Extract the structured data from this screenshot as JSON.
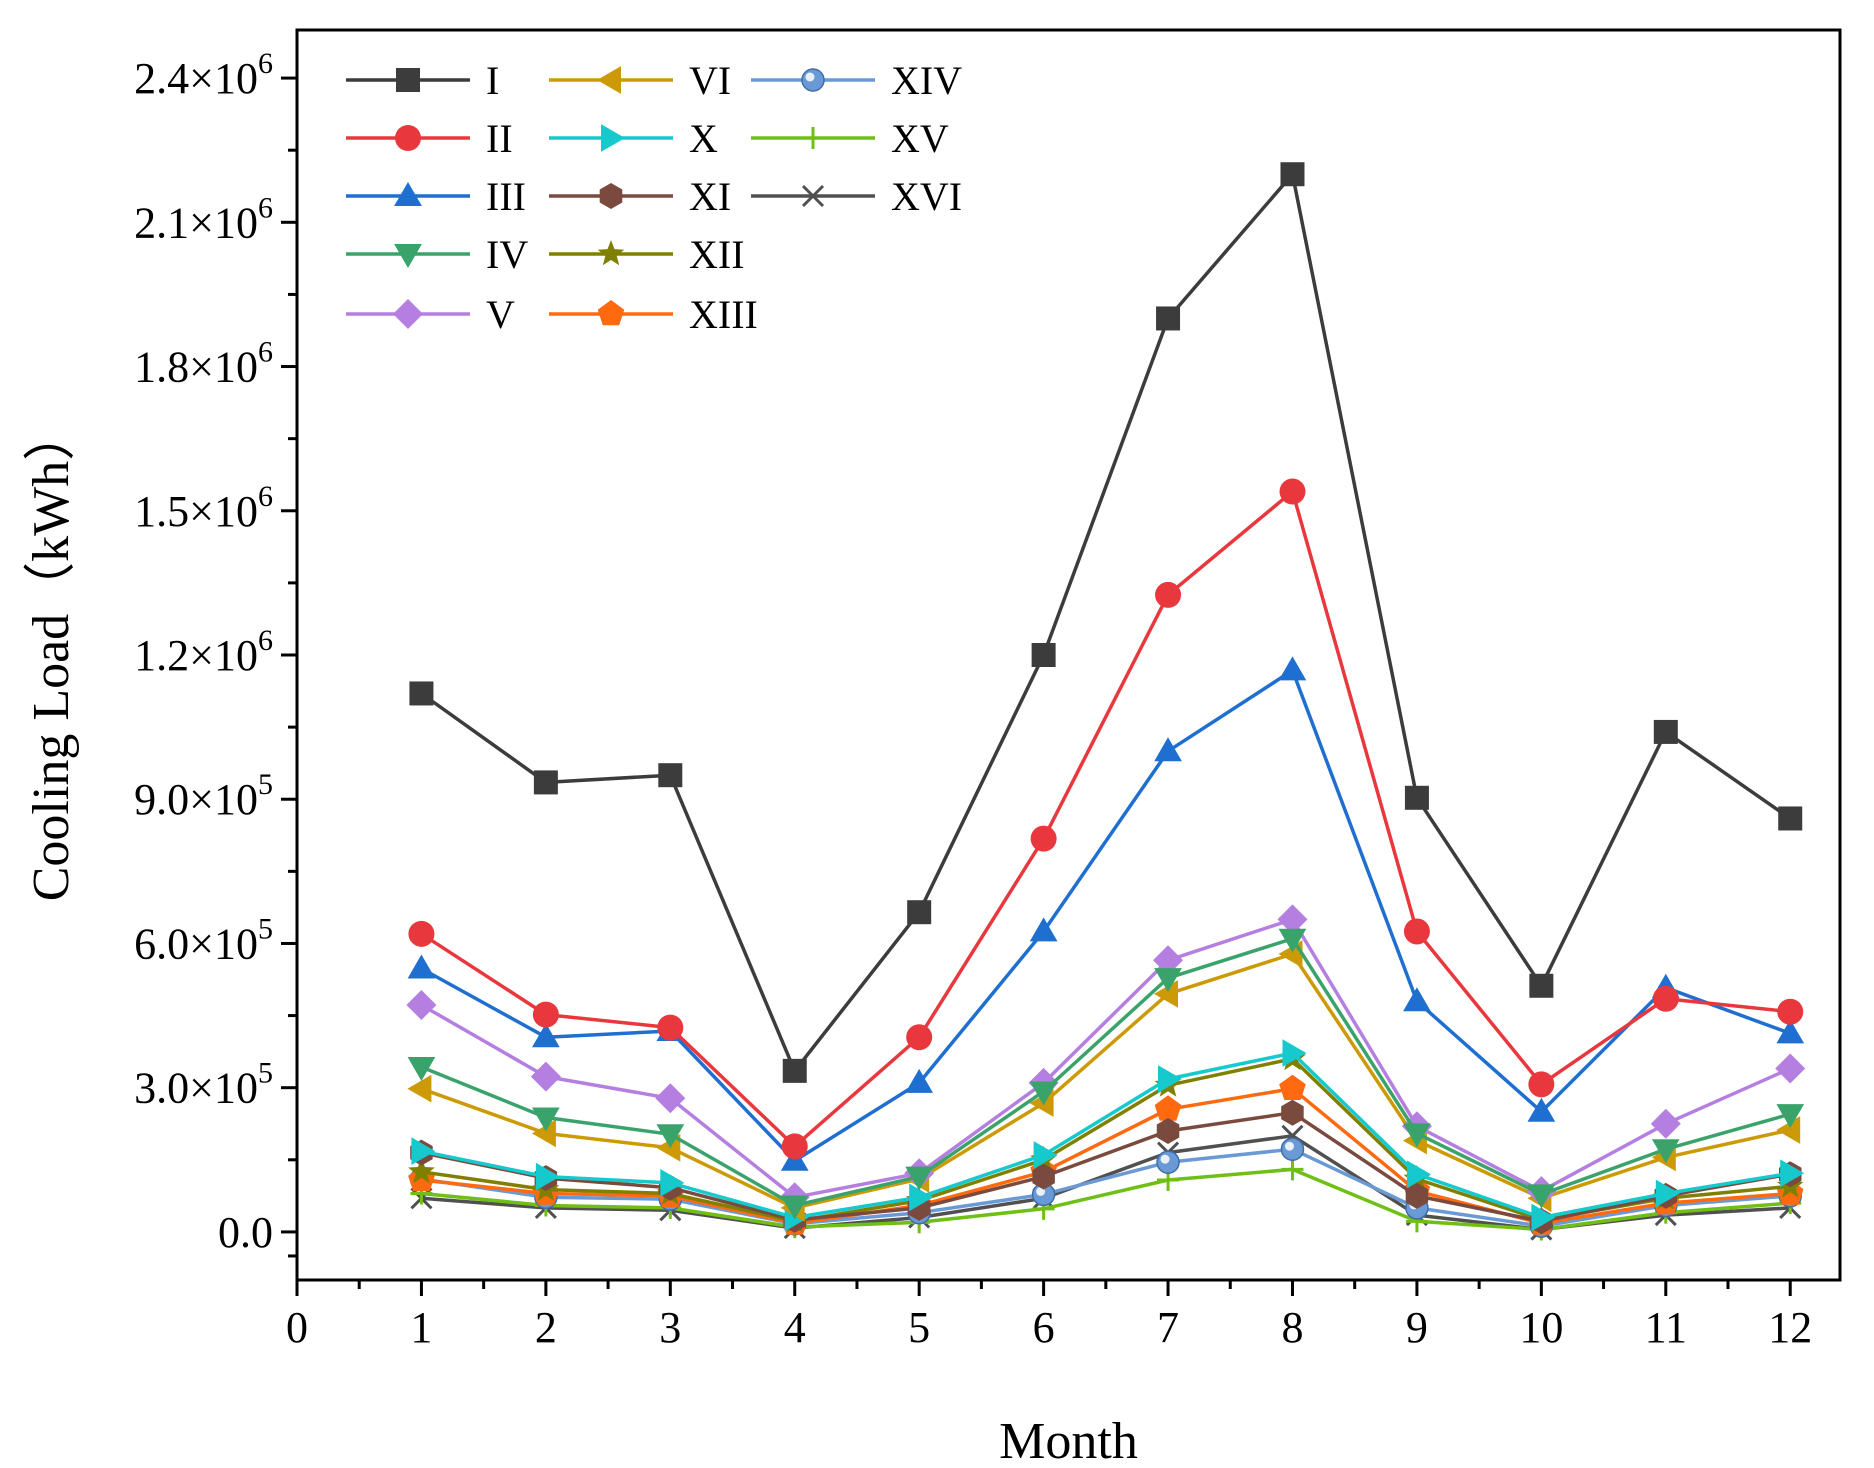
{
  "chart_data": {
    "type": "line",
    "title": "",
    "xlabel": "Month",
    "ylabel": "Cooling Load（kWh）",
    "xlim": [
      0,
      12.4
    ],
    "ylim": [
      -100000,
      2500000
    ],
    "x_ticks": [
      0,
      1,
      2,
      3,
      4,
      5,
      6,
      7,
      8,
      9,
      10,
      11,
      12
    ],
    "x_tick_labels": [
      "0",
      "1",
      "2",
      "3",
      "4",
      "5",
      "6",
      "7",
      "8",
      "9",
      "10",
      "11",
      "12"
    ],
    "y_ticks": [
      0,
      300000,
      600000,
      900000,
      1200000,
      1500000,
      1800000,
      2100000,
      2400000
    ],
    "y_tick_labels": [
      {
        "mant": "0.0",
        "exp": ""
      },
      {
        "mant": "3.0×10",
        "exp": "5"
      },
      {
        "mant": "6.0×10",
        "exp": "5"
      },
      {
        "mant": "9.0×10",
        "exp": "5"
      },
      {
        "mant": "1.2×10",
        "exp": "6"
      },
      {
        "mant": "1.5×10",
        "exp": "6"
      },
      {
        "mant": "1.8×10",
        "exp": "6"
      },
      {
        "mant": "2.1×10",
        "exp": "6"
      },
      {
        "mant": "2.4×10",
        "exp": "6"
      }
    ],
    "legend_position": "top-left",
    "grid": false,
    "x": [
      1,
      2,
      3,
      4,
      5,
      6,
      7,
      8,
      9,
      10,
      11,
      12
    ],
    "series": [
      {
        "name": "I",
        "color": "#3c3c3c",
        "marker": "square",
        "values": [
          1120000,
          935000,
          950000,
          335000,
          665000,
          1200000,
          1900000,
          2200000,
          903000,
          512000,
          1040000,
          860000
        ]
      },
      {
        "name": "II",
        "color": "#e8383d",
        "marker": "circle",
        "values": [
          620000,
          452000,
          425000,
          178000,
          405000,
          818000,
          1325000,
          1540000,
          625000,
          307000,
          485000,
          458000
        ]
      },
      {
        "name": "III",
        "color": "#1f6fd1",
        "marker": "triangle-up",
        "values": [
          548000,
          405000,
          418000,
          148000,
          310000,
          625000,
          1000000,
          1168000,
          480000,
          250000,
          508000,
          413000
        ]
      },
      {
        "name": "IV",
        "color": "#3aa36b",
        "marker": "triangle-down",
        "values": [
          343000,
          238000,
          203000,
          55000,
          115000,
          292000,
          528000,
          610000,
          205000,
          78000,
          172000,
          245000
        ]
      },
      {
        "name": "V",
        "color": "#b47fe0",
        "marker": "diamond",
        "values": [
          472000,
          323000,
          278000,
          72000,
          122000,
          310000,
          565000,
          650000,
          220000,
          85000,
          225000,
          340000
        ]
      },
      {
        "name": "VI",
        "color": "#cc9a06",
        "marker": "triangle-left",
        "values": [
          298000,
          205000,
          175000,
          50000,
          110000,
          268000,
          495000,
          578000,
          190000,
          70000,
          155000,
          212000
        ]
      },
      {
        "name": "X",
        "color": "#16c9cc",
        "marker": "triangle-right",
        "values": [
          168000,
          115000,
          102000,
          30000,
          72000,
          160000,
          318000,
          372000,
          120000,
          30000,
          80000,
          122000
        ]
      },
      {
        "name": "XI",
        "color": "#7a4a3e",
        "marker": "hexagon",
        "values": [
          165000,
          112000,
          92000,
          25000,
          50000,
          115000,
          210000,
          248000,
          75000,
          22000,
          75000,
          120000
        ]
      },
      {
        "name": "XII",
        "color": "#808000",
        "marker": "star",
        "values": [
          125000,
          88000,
          80000,
          22000,
          65000,
          150000,
          305000,
          360000,
          110000,
          25000,
          70000,
          95000
        ]
      },
      {
        "name": "XIII",
        "color": "#ff6a10",
        "marker": "pentagon",
        "values": [
          108000,
          80000,
          75000,
          18000,
          55000,
          125000,
          255000,
          298000,
          85000,
          18000,
          60000,
          80000
        ]
      },
      {
        "name": "XIV",
        "color": "#6a9ad6",
        "marker": "sphere",
        "values": [
          110000,
          72000,
          68000,
          17000,
          40000,
          78000,
          145000,
          172000,
          50000,
          12000,
          55000,
          75000
        ]
      },
      {
        "name": "XV",
        "color": "#6fbf17",
        "marker": "plus",
        "values": [
          80000,
          55000,
          50000,
          10000,
          20000,
          48000,
          108000,
          130000,
          22000,
          5000,
          40000,
          60000
        ]
      },
      {
        "name": "XVI",
        "color": "#505050",
        "marker": "x",
        "values": [
          70000,
          50000,
          45000,
          8000,
          30000,
          70000,
          165000,
          200000,
          35000,
          5000,
          35000,
          50000
        ]
      }
    ]
  }
}
